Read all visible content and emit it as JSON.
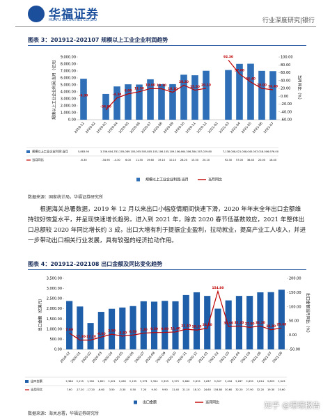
{
  "header": {
    "logo": "华福证券",
    "logo_en": "HUAFU SECURITIES CO.,LTD",
    "section": "行业深度研究|银行"
  },
  "chart_data": [
    {
      "type": "combo",
      "title": "图表 3：201912-202107 规模以上工业企业利润趋势",
      "categories": [
        "2019-12",
        "2020-02",
        "2020-03",
        "2020-04",
        "2020-05",
        "2020-06",
        "2020-07",
        "2020-08",
        "2020-09",
        "2020-10",
        "2020-11",
        "2020-12",
        "2021-02",
        "2021-03",
        "2021-04",
        "2021-05",
        "2021-06",
        "2021-07"
      ],
      "series": [
        {
          "name": "规模以上工业企业利润:当月",
          "color": "#2e6fb7",
          "type": "bar",
          "values": [
            5883.9,
            null,
            3706.6,
            4781.2,
            5089.1,
            5055.5,
            5805.1,
            5106.1,
            5109.1,
            6464.3,
            6384.3,
            7029.8,
            null,
            7138.0,
            8021.0,
            8045.0,
            7018.0,
            6976.0
          ],
          "value_labels": [
            "5,883.90",
            null,
            "3,706.60",
            "4,781.20",
            "5,089.10",
            "5,055.50",
            "5,805.10",
            "5,106.10",
            "5,109.10",
            "6,464.30",
            "6,384.30",
            "7,029.80",
            null,
            "7,138.00",
            "8,021.00",
            "8,045.00",
            "7,018.00",
            "6,976.00"
          ]
        },
        {
          "name": "当月同比",
          "color": "#c00000",
          "type": "line",
          "axis": "y2",
          "values": [
            -6.3,
            null,
            -34.9,
            -4.3,
            6.0,
            11.5,
            19.6,
            19.1,
            10.1,
            28.2,
            15.5,
            20.1,
            null,
            92.3,
            57.0,
            36.4,
            20.0,
            16.4
          ],
          "value_labels": [
            "-6.30",
            null,
            "-34.90",
            "-4.30",
            "6.00",
            "11.50",
            "19.60",
            "19.10",
            "10.10",
            "28.20",
            "15.50",
            "20.10",
            null,
            "92.30",
            "57.00",
            "36.40",
            "20.00",
            "16.40"
          ]
        }
      ],
      "ylabel": "规模以上工业企业利润:当月（亿元）",
      "y2label": "当月同比（%）",
      "ylim": [
        0,
        9000
      ],
      "yticks": [
        {
          "value": 0,
          "label": "0.00"
        },
        {
          "value": 1000,
          "label": "1,000.00"
        },
        {
          "value": 2000,
          "label": "2,000.00"
        },
        {
          "value": 3000,
          "label": "3,000.00"
        },
        {
          "value": 4000,
          "label": "4,000.00"
        },
        {
          "value": 5000,
          "label": "5,000.00"
        },
        {
          "value": 6000,
          "label": "6,000.00"
        },
        {
          "value": 7000,
          "label": "7,000.00"
        },
        {
          "value": 8000,
          "label": "8,000.00"
        },
        {
          "value": 9000,
          "label": "9,000.00"
        }
      ],
      "y2lim": [
        -60,
        100
      ],
      "y2ticks": [
        {
          "value": -60,
          "label": "-60.00"
        },
        {
          "value": -40,
          "label": "-40.00"
        },
        {
          "value": -20,
          "label": "-20.00"
        },
        {
          "value": 0,
          "label": "0.00"
        },
        {
          "value": 20,
          "label": "20.00"
        },
        {
          "value": 40,
          "label": "40.00"
        },
        {
          "value": 60,
          "label": "60.00"
        },
        {
          "value": 80,
          "label": "80.00"
        },
        {
          "value": 100,
          "label": "100.00"
        }
      ],
      "source": "数据来源：国家统计局，华福证券研究所"
    },
    {
      "type": "combo",
      "title": "图表 4：201912-202108 出口金额及同比变化趋势",
      "categories": [
        "2019-12",
        "2020-01",
        "2020-02",
        "2020-03",
        "2020-04",
        "2020-05",
        "2020-06",
        "2020-07",
        "2020-08",
        "2020-09",
        "2020-10",
        "2020-11",
        "2020-12",
        "2021-01",
        "2021-02",
        "2021-03",
        "2021-04",
        "2021-05",
        "2021-06",
        "2021-07",
        "2021-08"
      ],
      "series": [
        {
          "name": "出口金额",
          "color": "#1f5ea8",
          "type": "bar",
          "values": [
            2386,
            2115,
            1300,
            1851,
            2001,
            2065,
            2135,
            2373,
            2354,
            2393,
            2372,
            2680,
            2815,
            2637,
            2007,
            2416,
            2637,
            2639,
            2814,
            2823,
            2943
          ],
          "value_labels": [
            "2,386",
            "2,115",
            "1,300",
            "1,851",
            "2,001",
            "2,065",
            "2,135",
            "2,373",
            "2,354",
            "2,393",
            "2,372",
            "2,680",
            "2,815",
            "2,637",
            "2,007",
            "2,416",
            "2,637",
            "2,639",
            "2,814",
            "2,823",
            "2,943"
          ]
        },
        {
          "name": "当月同比",
          "color": "#c00000",
          "type": "line",
          "axis": "y2",
          "values": [
            7.6,
            -17.2,
            -17.2,
            -6.6,
            3.5,
            -3.3,
            0.5,
            7.2,
            9.5,
            9.9,
            11.4,
            21.1,
            18.1,
            24.6,
            154.8,
            30.6,
            32.2,
            27.9,
            32.2,
            19.3,
            25.6
          ],
          "value_labels": [
            "7.60",
            "-17.20",
            "-17.20",
            "-6.60",
            "3.50",
            "-3.30",
            "0.50",
            "7.20",
            "9.50",
            "9.90",
            "11.40",
            "21.10",
            "18.10",
            "24.60",
            "154.80",
            "30.60",
            "32.20",
            "27.90",
            "32.20",
            "19.30",
            "25.60"
          ]
        }
      ],
      "ylabel": "出口金额（亿美元）",
      "y2label": "出口金额当月同比（%）",
      "ylim": [
        0,
        3500
      ],
      "yticks": [
        {
          "value": 0,
          "label": "0.00"
        },
        {
          "value": 500,
          "label": "500.00"
        },
        {
          "value": 1000,
          "label": "1,000.00"
        },
        {
          "value": 1500,
          "label": "1,500.00"
        },
        {
          "value": 2000,
          "label": "2,000.00"
        },
        {
          "value": 2500,
          "label": "2,500.00"
        },
        {
          "value": 3000,
          "label": "3,000.00"
        },
        {
          "value": 3500,
          "label": "3,500.00"
        }
      ],
      "y2lim": [
        -50,
        200
      ],
      "y2ticks": [
        {
          "value": -50,
          "label": "-50.00"
        },
        {
          "value": 0,
          "label": "0.00"
        },
        {
          "value": 50,
          "label": "50.00"
        },
        {
          "value": 100,
          "label": "100.00"
        },
        {
          "value": 150,
          "label": "150.00"
        },
        {
          "value": 200,
          "label": "200.00"
        }
      ],
      "source": "数据来源：海关总署，华福证券研究所"
    }
  ],
  "paragraph": "根据海关总署数据，2019 年 12 月以来出口小幅疫情期间快速下滑，2020 年年末全年出口金额维持较好恢复水平，并呈现快速增长趋势。进入到 2021 年，除去 2020 春节低基数效应，2021 年整体出口总额较 2020 年同比增长约 3 成，出口大增有利于提振企业盈利，拉动就业，提高产业工人收入，并进一步带动出口相关行业发展，具有较强的经济拉动作用。",
  "watermark": "知乎 @璟璟报告"
}
